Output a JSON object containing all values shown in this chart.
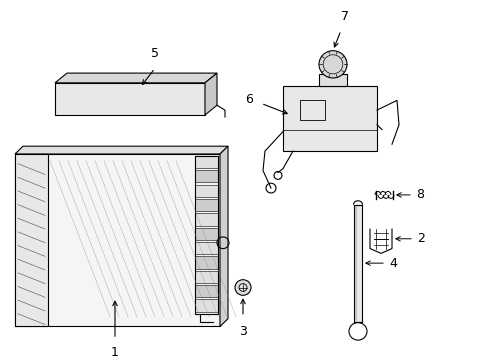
{
  "background_color": "#ffffff",
  "line_color": "#000000",
  "gray_light": "#e8e8e8",
  "gray_mid": "#d0d0d0",
  "gray_dark": "#b0b0b0",
  "fig_w": 4.89,
  "fig_h": 3.6,
  "dpi": 100
}
